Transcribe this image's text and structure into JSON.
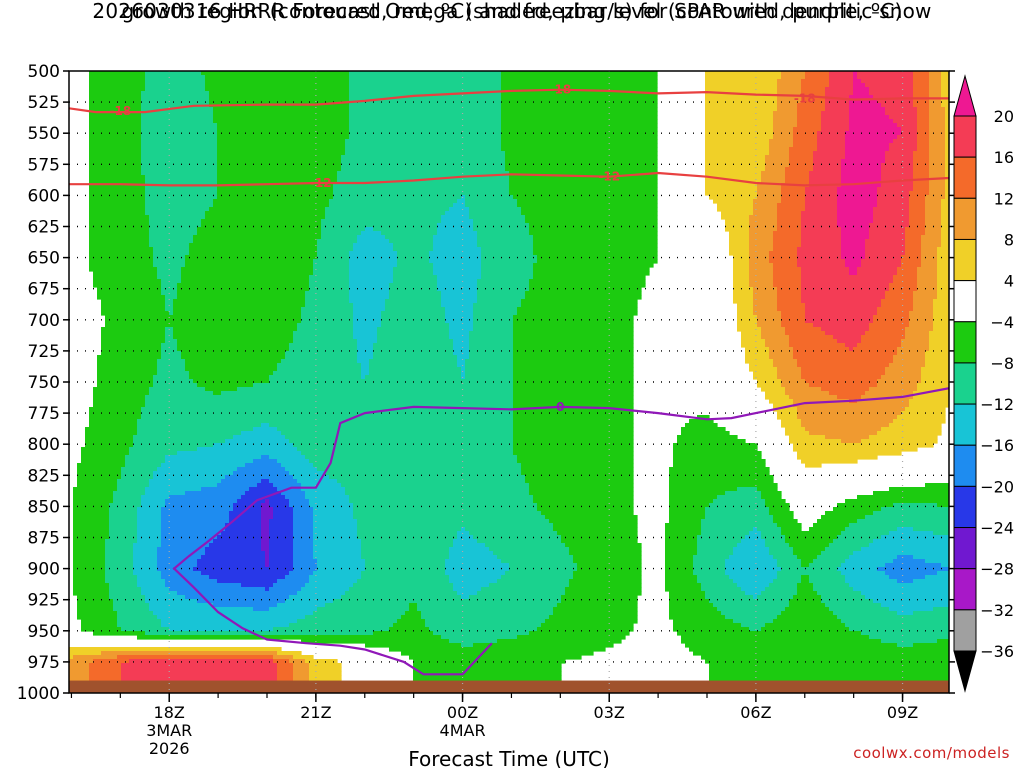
{
  "chart_data": {
    "type": "heatmap",
    "title": "2026030316 HRRR Forecast Omega (shaded, μbar/s) for SPAR with dendritic snow",
    "subtitle": "growth region (contoured, red, ºC) and freezing level (contoured, purple, ºC)",
    "xlabel": "Forecast Time (UTC)",
    "ylabel": "",
    "x_hours": [
      16,
      17,
      18,
      19,
      20,
      21,
      22,
      23,
      24,
      25,
      26,
      27,
      28,
      29,
      30,
      31,
      32,
      33,
      34
    ],
    "x_ticks": [
      {
        "hour": 18,
        "label": "18Z",
        "sub1": "3MAR",
        "sub2": "2026"
      },
      {
        "hour": 21,
        "label": "21Z",
        "sub1": "",
        "sub2": ""
      },
      {
        "hour": 24,
        "label": "00Z",
        "sub1": "4MAR",
        "sub2": ""
      },
      {
        "hour": 27,
        "label": "03Z",
        "sub1": "",
        "sub2": ""
      },
      {
        "hour": 30,
        "label": "06Z",
        "sub1": "",
        "sub2": ""
      },
      {
        "hour": 33,
        "label": "09Z",
        "sub1": "",
        "sub2": ""
      }
    ],
    "xlim": [
      15.95,
      33.95
    ],
    "ylim": [
      1000,
      500
    ],
    "y_ticks": [
      500,
      525,
      550,
      575,
      600,
      625,
      650,
      675,
      700,
      725,
      750,
      775,
      800,
      825,
      850,
      875,
      900,
      925,
      950,
      975,
      1000
    ],
    "grid": true,
    "levels_hpa": [
      500,
      550,
      600,
      650,
      700,
      750,
      800,
      850,
      900,
      950,
      975
    ],
    "omega": [
      [
        -3,
        -6,
        -10,
        -7,
        -5,
        -6,
        -9,
        -10,
        -11,
        -7,
        -6,
        -5,
        -4,
        4,
        4,
        12,
        20,
        19,
        5
      ],
      [
        -3,
        -6,
        -11,
        -8,
        -5,
        -6,
        -9,
        -10,
        -11,
        -7,
        -6,
        -5,
        -4,
        4,
        5,
        14,
        21,
        20,
        6
      ],
      [
        -3,
        -6,
        -10,
        -8,
        -6,
        -7,
        -10,
        -11,
        -12,
        -8,
        -7,
        -5,
        -4,
        4,
        8,
        16,
        22,
        18,
        6
      ],
      [
        -3,
        -6,
        -9,
        -6,
        -5,
        -8,
        -14,
        -11,
        -14,
        -9,
        -7,
        -5,
        -4,
        -2,
        10,
        17,
        21,
        16,
        5
      ],
      [
        -2,
        -5,
        -8,
        -5,
        -6,
        -9,
        -13,
        -10,
        -13,
        -8,
        -7,
        -5,
        -3,
        -2,
        8,
        16,
        18,
        13,
        5
      ],
      [
        -2,
        -6,
        -9,
        -7,
        -8,
        -10,
        -12,
        -9,
        -12,
        -8,
        -6,
        -5,
        -3,
        -2,
        4,
        12,
        14,
        10,
        4
      ],
      [
        -3,
        -7,
        -11,
        -12,
        -14,
        -10,
        -10,
        -9,
        -11,
        -8,
        -6,
        -5,
        -3,
        -6,
        -4,
        7,
        8,
        6,
        3
      ],
      [
        -4,
        -9,
        -17,
        -18,
        -25,
        -15,
        -11,
        -8,
        -11,
        -9,
        -7,
        -5,
        -3,
        -8,
        -10,
        -1,
        -6,
        -9,
        -8
      ],
      [
        -4,
        -10,
        -18,
        -22,
        -24,
        -16,
        -12,
        -9,
        -14,
        -12,
        -9,
        -6,
        -3,
        -10,
        -16,
        -8,
        -14,
        -18,
        -16
      ],
      [
        -3,
        -8,
        -12,
        -12,
        -12,
        -10,
        -9,
        -7,
        -10,
        -9,
        -7,
        -5,
        -3,
        -6,
        -8,
        -5,
        -8,
        -10,
        -9
      ],
      [
        10,
        16,
        20,
        18,
        18,
        6,
        2,
        -4,
        -6,
        -5,
        -4,
        -3,
        -2,
        -4,
        -5,
        -4,
        -5,
        -6,
        -5
      ]
    ],
    "colorbar": {
      "labels": [
        "20",
        "16",
        "12",
        "8",
        "4",
        "−4",
        "−8",
        "−12",
        "−16",
        "−20",
        "−24",
        "−28",
        "−32",
        "−36"
      ],
      "bins": [
        {
          "min": 20,
          "max": 99,
          "color": "#ee1892"
        },
        {
          "min": 16,
          "max": 20,
          "color": "#f43c55"
        },
        {
          "min": 12,
          "max": 16,
          "color": "#f46a2a"
        },
        {
          "min": 8,
          "max": 12,
          "color": "#f09a30"
        },
        {
          "min": 4,
          "max": 8,
          "color": "#f0d028"
        },
        {
          "min": -4,
          "max": 4,
          "color": "#ffffff"
        },
        {
          "min": -8,
          "max": -4,
          "color": "#1ccb10"
        },
        {
          "min": -12,
          "max": -8,
          "color": "#1ad28e"
        },
        {
          "min": -16,
          "max": -12,
          "color": "#18c4d6"
        },
        {
          "min": -20,
          "max": -16,
          "color": "#1e8cf0"
        },
        {
          "min": -24,
          "max": -20,
          "color": "#2838e8"
        },
        {
          "min": -28,
          "max": -24,
          "color": "#7018d0"
        },
        {
          "min": -32,
          "max": -28,
          "color": "#a818c8"
        },
        {
          "min": -36,
          "max": -32,
          "color": "#a0a0a0"
        },
        {
          "min": -99,
          "max": -36,
          "color": "#000000"
        }
      ]
    },
    "contours": [
      {
        "label": "-18",
        "color": "#e84040",
        "points": [
          [
            15.95,
            530
          ],
          [
            16.5,
            533
          ],
          [
            17.5,
            533
          ],
          [
            18.5,
            528
          ],
          [
            20,
            527
          ],
          [
            21,
            527
          ],
          [
            22,
            524
          ],
          [
            23,
            520
          ],
          [
            24,
            518
          ],
          [
            25,
            516
          ],
          [
            26,
            515
          ],
          [
            27,
            516
          ],
          [
            28,
            518
          ],
          [
            29,
            517
          ],
          [
            30,
            519
          ],
          [
            31,
            520
          ],
          [
            32,
            523
          ],
          [
            33,
            522
          ],
          [
            33.95,
            522
          ]
        ],
        "label_at": [
          [
            17.0,
            532
          ],
          [
            26.0,
            515
          ],
          [
            31.0,
            522
          ]
        ]
      },
      {
        "label": "-12",
        "color": "#e84040",
        "points": [
          [
            15.95,
            591
          ],
          [
            17,
            591
          ],
          [
            18,
            592
          ],
          [
            19,
            592
          ],
          [
            20,
            591
          ],
          [
            21,
            590
          ],
          [
            22,
            590
          ],
          [
            23,
            588
          ],
          [
            24,
            585
          ],
          [
            25,
            583
          ],
          [
            26,
            584
          ],
          [
            27,
            585
          ],
          [
            28,
            582
          ],
          [
            29,
            585
          ],
          [
            30,
            590
          ],
          [
            31,
            592
          ],
          [
            32,
            591
          ],
          [
            33,
            588
          ],
          [
            33.95,
            586
          ]
        ],
        "label_at": [
          [
            21.1,
            590
          ],
          [
            27.0,
            585
          ]
        ]
      },
      {
        "label": "0",
        "color": "#9018b8",
        "points": [
          [
            24.6,
            960
          ],
          [
            24.0,
            985
          ],
          [
            23.2,
            985
          ],
          [
            22.8,
            975
          ],
          [
            22.0,
            965
          ],
          [
            21.5,
            962
          ],
          [
            20.8,
            960
          ],
          [
            20.0,
            957
          ],
          [
            19.5,
            948
          ],
          [
            19.0,
            935
          ],
          [
            18.5,
            915
          ],
          [
            18.1,
            900
          ],
          [
            18.4,
            890
          ],
          [
            18.8,
            878
          ],
          [
            19.3,
            862
          ],
          [
            19.8,
            845
          ],
          [
            20.5,
            835
          ],
          [
            21.0,
            835
          ],
          [
            21.3,
            815
          ],
          [
            21.5,
            783
          ],
          [
            22.0,
            775
          ],
          [
            23.0,
            770
          ],
          [
            24.0,
            771
          ],
          [
            25.0,
            772
          ],
          [
            26.0,
            770
          ],
          [
            27.0,
            771
          ],
          [
            28.0,
            775
          ],
          [
            29.0,
            780
          ],
          [
            29.5,
            779
          ],
          [
            30.0,
            775
          ],
          [
            31.0,
            767
          ],
          [
            32.0,
            765
          ],
          [
            33.0,
            762
          ],
          [
            33.95,
            755
          ]
        ],
        "label_at": [
          [
            26.0,
            770
          ]
        ]
      }
    ],
    "terrain": {
      "color": "#a0522d",
      "pressure": 990
    }
  },
  "credit": "coolwx.com/models"
}
